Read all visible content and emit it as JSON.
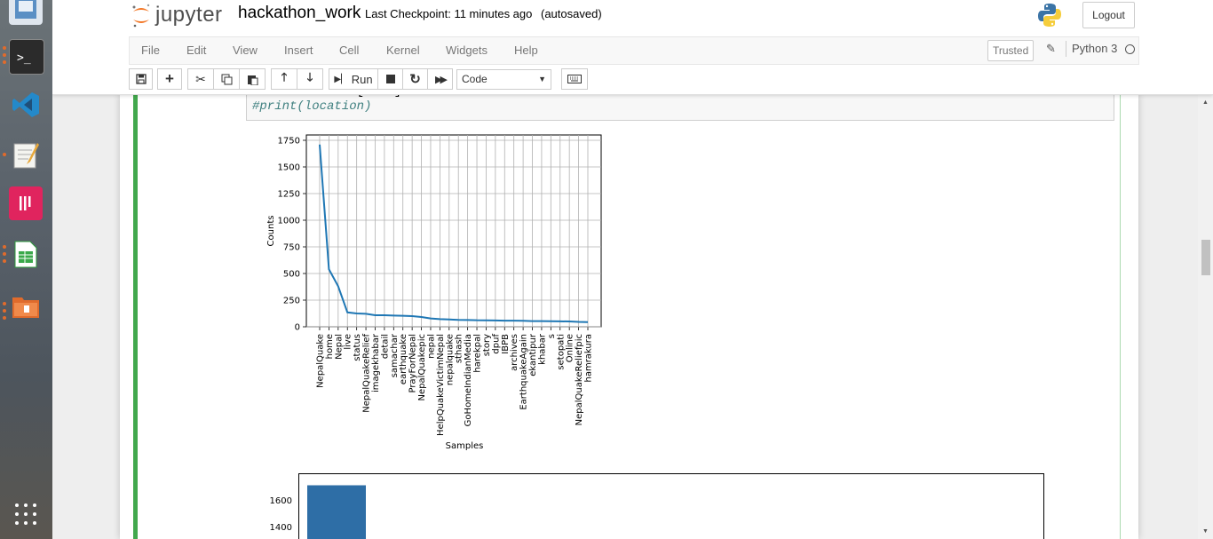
{
  "dock": {
    "items": [
      "files-app",
      "terminal-app",
      "vscode-app",
      "text-editor-app",
      "media-app",
      "spreadsheet-app",
      "archive-app"
    ],
    "grid_label": "show-applications"
  },
  "header": {
    "logo_text": "jupyter",
    "notebook_name": "hackathon_work",
    "checkpoint": "Last Checkpoint: 11 minutes ago",
    "autosave": "(autosaved)",
    "logout": "Logout"
  },
  "menubar": {
    "items": [
      "File",
      "Edit",
      "View",
      "Insert",
      "Cell",
      "Kernel",
      "Widgets",
      "Help"
    ],
    "trusted": "Trusted",
    "kernel": "Python 3"
  },
  "toolbar": {
    "run_label": "Run",
    "cell_type": "Code"
  },
  "cell": {
    "code_line1": "location=train['id']",
    "code_line2": "#print(location)"
  },
  "chart_data": [
    {
      "type": "line",
      "xlabel": "Samples",
      "ylabel": "Counts",
      "ylim": [
        0,
        1800
      ],
      "yticks": [
        0,
        250,
        500,
        750,
        1000,
        1250,
        1500,
        1750
      ],
      "grid": true,
      "color": "#1f77b4",
      "categories": [
        "NepalQuake",
        "home",
        "Nepal",
        "live",
        "status",
        "NepalQuakeRelief",
        "imagekhabar",
        "detail",
        "samachar",
        "earthquake",
        "PrayForNepal",
        "NepalQuakepic",
        "nepal",
        "HelpQuakeVictimNepal",
        "nepalquake",
        "sthash",
        "GoHomeIndianMedia",
        "harekpal",
        "story",
        "dpuf",
        "IBPB",
        "archives",
        "EarthquakeAgain",
        "ekantipur",
        "khabar",
        "s",
        "setopati",
        "Online",
        "NepalQuakeReliefpic",
        "hamrakura"
      ],
      "values": [
        1710,
        540,
        380,
        135,
        125,
        122,
        108,
        108,
        105,
        103,
        100,
        92,
        78,
        72,
        69,
        65,
        64,
        61,
        60,
        59,
        57,
        57,
        56,
        53,
        53,
        52,
        51,
        50,
        46,
        44
      ]
    },
    {
      "type": "bar",
      "yticks": [
        1400,
        1600
      ],
      "values": [
        1710
      ],
      "color": "#2e6ea6"
    }
  ]
}
